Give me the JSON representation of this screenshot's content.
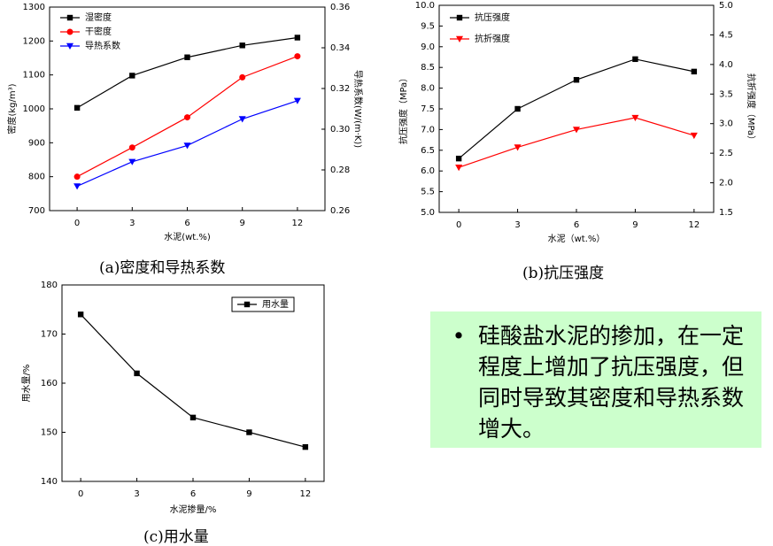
{
  "captions": {
    "a": "(a)密度和导热系数",
    "b": "(b)抗压强度",
    "c": "(c)用水量"
  },
  "note": {
    "bullet": "•",
    "text": "硅酸盐水泥的掺加，在一定程度上增加了抗压强度，但同时导致其密度和导热系数增大。"
  },
  "chart_data": [
    {
      "type": "line",
      "categories": [
        "0",
        "3",
        "6",
        "9",
        "12"
      ],
      "x": [
        0,
        3,
        6,
        9,
        12
      ],
      "xlabel": "水泥(wt.%)",
      "ylabel": "密度(kg/m³)",
      "y2label": "导热系数(W/(m·K))",
      "ylim": [
        700,
        1300
      ],
      "yticks": [
        "700",
        "800",
        "900",
        "1000",
        "1100",
        "1200",
        "1300"
      ],
      "y2lim": [
        0.26,
        0.36
      ],
      "y2ticks": [
        "0.26",
        "0.28",
        "0.30",
        "0.32",
        "0.34",
        "0.36"
      ],
      "legend": "top-left",
      "grid": false,
      "series": [
        {
          "name": "湿密度",
          "axis": "left",
          "color": "#000000",
          "marker": "square",
          "values": [
            1003,
            1098,
            1152,
            1187,
            1210
          ]
        },
        {
          "name": "干密度",
          "axis": "left",
          "color": "#ff0000",
          "marker": "circle",
          "values": [
            800,
            886,
            975,
            1093,
            1155
          ]
        },
        {
          "name": "导热系数",
          "axis": "right",
          "color": "#0000ff",
          "marker": "triangle-down",
          "values": [
            0.272,
            0.284,
            0.292,
            0.305,
            0.314
          ]
        }
      ]
    },
    {
      "type": "line",
      "categories": [
        "0",
        "3",
        "6",
        "9",
        "12"
      ],
      "x": [
        0,
        3,
        6,
        9,
        12
      ],
      "xlabel": "水泥（wt.%）",
      "ylabel": "抗压强度（MPa）",
      "y2label": "抗折强度（MPa）",
      "ylim": [
        5.0,
        10.0
      ],
      "yticks": [
        "5.0",
        "5.5",
        "6.0",
        "6.5",
        "7.0",
        "7.5",
        "8.0",
        "8.5",
        "9.0",
        "9.5",
        "10.0"
      ],
      "y2lim": [
        1.5,
        5.0
      ],
      "y2ticks": [
        "1.5",
        "2.0",
        "2.5",
        "3.0",
        "3.5",
        "4.0",
        "4.5",
        "5.0"
      ],
      "legend": "top-left",
      "grid": false,
      "series": [
        {
          "name": "抗压强度",
          "axis": "left",
          "color": "#000000",
          "marker": "square",
          "values": [
            6.3,
            7.5,
            8.2,
            8.7,
            8.4
          ]
        },
        {
          "name": "抗折强度",
          "axis": "right",
          "color": "#ff0000",
          "marker": "triangle-down",
          "values": [
            2.26,
            2.6,
            2.9,
            3.1,
            2.8
          ]
        }
      ]
    },
    {
      "type": "line",
      "categories": [
        "0",
        "3",
        "6",
        "9",
        "12"
      ],
      "x": [
        0,
        3,
        6,
        9,
        12
      ],
      "xlabel": "水泥掺量/%",
      "ylabel": "用水量/%",
      "ylim": [
        140,
        180
      ],
      "yticks": [
        "140",
        "150",
        "160",
        "170",
        "180"
      ],
      "legend": "top-right",
      "grid": false,
      "series": [
        {
          "name": "用水量",
          "axis": "left",
          "color": "#000000",
          "marker": "square",
          "values": [
            174,
            162,
            153,
            150,
            147
          ]
        }
      ]
    }
  ]
}
